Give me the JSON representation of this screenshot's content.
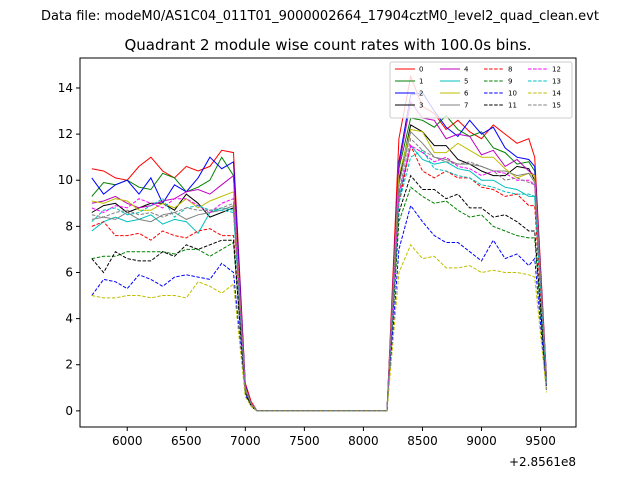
{
  "suptitle": "Data file: modeM0/AS1C04_011T01_9000002664_17904cztM0_level2_quad_clean.evt",
  "chart_data": {
    "type": "line",
    "title": "Quadrant 2 module wise count rates with 100.0s bins.",
    "xlabel": "",
    "ylabel": "",
    "x_offset_label": "+2.8561e8",
    "xlim": [
      5600,
      9800
    ],
    "ylim": [
      -0.7,
      15.3
    ],
    "x_ticks": [
      6000,
      6500,
      7000,
      7500,
      8000,
      8500,
      9000,
      9500
    ],
    "x_tick_labels": [
      "6000",
      "6500",
      "7000",
      "7500",
      "8000",
      "8500",
      "9000",
      "9500"
    ],
    "y_ticks": [
      0,
      2,
      4,
      6,
      8,
      10,
      12,
      14
    ],
    "y_tick_labels": [
      "0",
      "2",
      "4",
      "6",
      "8",
      "10",
      "12",
      "14"
    ],
    "grid": false,
    "legend_position": "top-right",
    "x": [
      5700,
      5800,
      5900,
      6000,
      6100,
      6200,
      6300,
      6400,
      6500,
      6600,
      6700,
      6800,
      6900,
      7000,
      7050,
      7100,
      7200,
      7300,
      7400,
      7500,
      7600,
      7700,
      7800,
      7900,
      8000,
      8100,
      8200,
      8300,
      8400,
      8500,
      8600,
      8700,
      8800,
      8900,
      9000,
      9100,
      9200,
      9300,
      9400,
      9450,
      9550
    ],
    "series": [
      {
        "name": "0",
        "color": "#ff0000",
        "dash": false,
        "values": [
          10.5,
          10.4,
          10.1,
          10.0,
          10.6,
          11.0,
          10.4,
          10.1,
          10.6,
          10.4,
          10.6,
          11.3,
          11.2,
          1.2,
          0.4,
          0,
          0,
          0,
          0,
          0,
          0,
          0,
          0,
          0,
          0,
          0,
          0,
          11.8,
          14.5,
          13.2,
          12.9,
          12.2,
          12.6,
          12.1,
          11.8,
          12.4,
          12.0,
          11.6,
          11.8,
          11.0,
          1.5
        ]
      },
      {
        "name": "1",
        "color": "#008000",
        "dash": false,
        "values": [
          9.3,
          9.9,
          9.8,
          10.0,
          9.7,
          9.6,
          10.3,
          10.1,
          9.5,
          9.7,
          10.0,
          11.0,
          10.2,
          1.0,
          0.3,
          0,
          0,
          0,
          0,
          0,
          0,
          0,
          0,
          0,
          0,
          0,
          0,
          10.5,
          12.7,
          12.6,
          12.3,
          12.8,
          12.2,
          11.9,
          12.1,
          11.4,
          11.2,
          10.7,
          10.8,
          10.4,
          1.3
        ]
      },
      {
        "name": "2",
        "color": "#0000ff",
        "dash": false,
        "values": [
          10.1,
          9.4,
          9.8,
          10.0,
          9.4,
          10.1,
          9.0,
          9.8,
          9.5,
          10.1,
          11.0,
          10.5,
          10.8,
          1.1,
          0.3,
          0,
          0,
          0,
          0,
          0,
          0,
          0,
          0,
          0,
          0,
          0,
          0,
          10.8,
          13.7,
          13.8,
          13.0,
          12.3,
          11.9,
          12.6,
          12.0,
          12.3,
          11.4,
          11.0,
          10.9,
          10.6,
          1.4
        ]
      },
      {
        "name": "3",
        "color": "#000000",
        "dash": false,
        "values": [
          8.6,
          8.9,
          9.0,
          8.6,
          8.8,
          9.0,
          9.0,
          8.7,
          9.4,
          9.0,
          8.4,
          8.6,
          8.8,
          0.9,
          0.2,
          0,
          0,
          0,
          0,
          0,
          0,
          0,
          0,
          0,
          0,
          0,
          0,
          10.0,
          12.4,
          12.1,
          11.5,
          11.5,
          10.9,
          10.7,
          10.4,
          10.2,
          10.2,
          10.6,
          10.5,
          10.0,
          1.3
        ]
      },
      {
        "name": "4",
        "color": "#bf00bf",
        "dash": false,
        "values": [
          9.0,
          9.1,
          9.3,
          9.0,
          8.8,
          8.9,
          9.1,
          9.2,
          9.5,
          9.6,
          9.4,
          9.8,
          10.2,
          1.0,
          0.3,
          0,
          0,
          0,
          0,
          0,
          0,
          0,
          0,
          0,
          0,
          0,
          0,
          10.6,
          13.4,
          12.7,
          12.6,
          11.8,
          12.0,
          11.9,
          11.1,
          11.3,
          10.6,
          10.9,
          10.4,
          10.2,
          1.3
        ]
      },
      {
        "name": "5",
        "color": "#00bfbf",
        "dash": false,
        "values": [
          7.8,
          8.2,
          8.4,
          8.2,
          8.3,
          8.5,
          8.1,
          8.3,
          8.2,
          7.7,
          8.6,
          8.8,
          8.7,
          0.9,
          0.3,
          0,
          0,
          0,
          0,
          0,
          0,
          0,
          0,
          0,
          0,
          0,
          0,
          9.2,
          11.5,
          10.9,
          10.7,
          10.8,
          10.5,
          10.4,
          10.0,
          10.0,
          9.7,
          9.6,
          9.3,
          9.3,
          1.2
        ]
      },
      {
        "name": "6",
        "color": "#bfbf00",
        "dash": false,
        "values": [
          9.1,
          9.0,
          9.2,
          9.1,
          8.7,
          8.7,
          9.0,
          8.8,
          9.2,
          8.8,
          9.1,
          9.3,
          9.5,
          1.0,
          0.3,
          0,
          0,
          0,
          0,
          0,
          0,
          0,
          0,
          0,
          0,
          0,
          0,
          10.2,
          12.2,
          12.1,
          11.2,
          11.2,
          11.6,
          11.3,
          11.0,
          11.0,
          10.5,
          10.1,
          10.3,
          10.2,
          1.3
        ]
      },
      {
        "name": "7",
        "color": "#808080",
        "dash": false,
        "values": [
          8.3,
          8.4,
          8.3,
          8.6,
          8.3,
          8.2,
          8.5,
          8.6,
          8.3,
          8.5,
          8.6,
          8.7,
          8.9,
          0.9,
          0.3,
          0,
          0,
          0,
          0,
          0,
          0,
          0,
          0,
          0,
          0,
          0,
          0,
          9.8,
          12.1,
          11.6,
          11.0,
          10.9,
          10.7,
          10.7,
          10.6,
          10.4,
          10.4,
          10.2,
          10.3,
          9.9,
          1.3
        ]
      },
      {
        "name": "8",
        "color": "#ff0000",
        "dash": true,
        "values": [
          8.0,
          8.2,
          7.6,
          7.6,
          7.7,
          7.4,
          7.8,
          7.6,
          7.5,
          7.8,
          7.9,
          7.6,
          7.6,
          0.8,
          0.2,
          0,
          0,
          0,
          0,
          0,
          0,
          0,
          0,
          0,
          0,
          0,
          0,
          9.0,
          11.5,
          10.4,
          10.1,
          10.4,
          10.1,
          10.1,
          9.7,
          9.6,
          9.3,
          9.4,
          8.9,
          8.9,
          1.1
        ]
      },
      {
        "name": "9",
        "color": "#008000",
        "dash": true,
        "values": [
          6.6,
          6.7,
          6.7,
          6.9,
          6.9,
          6.9,
          6.9,
          6.8,
          7.0,
          7.0,
          6.7,
          7.0,
          7.3,
          0.8,
          0.2,
          0,
          0,
          0,
          0,
          0,
          0,
          0,
          0,
          0,
          0,
          0,
          0,
          8.2,
          9.7,
          9.3,
          9.0,
          9.1,
          8.7,
          8.4,
          8.5,
          8.0,
          7.8,
          7.6,
          7.5,
          7.5,
          1.0
        ]
      },
      {
        "name": "10",
        "color": "#0000ff",
        "dash": true,
        "values": [
          5.0,
          5.7,
          5.6,
          5.3,
          5.9,
          5.7,
          5.4,
          5.8,
          5.9,
          5.8,
          5.7,
          6.4,
          6.0,
          0.7,
          0.2,
          0,
          0,
          0,
          0,
          0,
          0,
          0,
          0,
          0,
          0,
          0,
          0,
          7.0,
          8.9,
          8.2,
          7.6,
          7.3,
          7.3,
          6.9,
          6.5,
          7.4,
          6.6,
          6.8,
          6.3,
          6.6,
          0.9
        ]
      },
      {
        "name": "11",
        "color": "#000000",
        "dash": true,
        "values": [
          6.6,
          6.0,
          6.9,
          6.6,
          6.5,
          6.5,
          6.9,
          6.7,
          7.2,
          7.0,
          7.2,
          7.4,
          7.4,
          0.8,
          0.2,
          0,
          0,
          0,
          0,
          0,
          0,
          0,
          0,
          0,
          0,
          0,
          0,
          8.6,
          10.2,
          9.6,
          9.6,
          9.2,
          9.4,
          8.8,
          8.8,
          8.4,
          8.5,
          8.2,
          7.8,
          7.8,
          1.1
        ]
      },
      {
        "name": "12",
        "color": "#ff00ff",
        "dash": true,
        "values": [
          8.8,
          8.6,
          8.9,
          8.8,
          9.2,
          9.0,
          8.8,
          9.2,
          9.2,
          8.9,
          8.6,
          9.0,
          9.2,
          0.9,
          0.3,
          0,
          0,
          0,
          0,
          0,
          0,
          0,
          0,
          0,
          0,
          0,
          0,
          9.4,
          11.5,
          11.2,
          10.8,
          11.0,
          10.6,
          10.5,
          10.2,
          10.4,
          10.3,
          10.0,
          10.0,
          9.8,
          1.2
        ]
      },
      {
        "name": "13",
        "color": "#00bfbf",
        "dash": true,
        "values": [
          8.2,
          8.7,
          8.8,
          8.5,
          8.6,
          8.9,
          9.2,
          8.4,
          8.8,
          8.9,
          8.7,
          8.7,
          8.6,
          0.9,
          0.3,
          0,
          0,
          0,
          0,
          0,
          0,
          0,
          0,
          0,
          0,
          0,
          0,
          9.0,
          11.0,
          11.3,
          10.5,
          10.4,
          10.2,
          10.1,
          9.8,
          9.7,
          9.5,
          9.4,
          9.4,
          9.3,
          1.2
        ]
      },
      {
        "name": "14",
        "color": "#bfbf00",
        "dash": true,
        "values": [
          5.0,
          4.9,
          4.9,
          5.0,
          5.0,
          4.9,
          5.0,
          5.0,
          4.9,
          5.6,
          5.4,
          5.1,
          5.5,
          0.6,
          0.2,
          0,
          0,
          0,
          0,
          0,
          0,
          0,
          0,
          0,
          0,
          0,
          0,
          6.0,
          7.2,
          6.6,
          6.7,
          6.2,
          6.2,
          6.3,
          6.0,
          6.1,
          6.0,
          6.0,
          5.9,
          5.8,
          0.8
        ]
      },
      {
        "name": "15",
        "color": "#808080",
        "dash": true,
        "values": [
          8.5,
          8.4,
          8.6,
          8.7,
          8.5,
          8.6,
          8.4,
          8.6,
          8.8,
          8.7,
          8.7,
          8.8,
          9.0,
          0.9,
          0.3,
          0,
          0,
          0,
          0,
          0,
          0,
          0,
          0,
          0,
          0,
          0,
          0,
          9.5,
          11.8,
          11.3,
          11.0,
          10.8,
          10.7,
          10.8,
          10.6,
          10.4,
          10.0,
          10.1,
          9.9,
          9.8,
          1.2
        ]
      }
    ]
  }
}
